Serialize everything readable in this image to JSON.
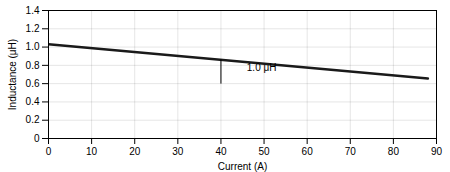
{
  "chart_data": {
    "type": "line",
    "xlabel": "Current (A)",
    "ylabel": "Inductance (μH)",
    "x": [
      0,
      88
    ],
    "values": [
      1.03,
      0.655
    ],
    "color": "#1a1a1a",
    "xlim": [
      0,
      90
    ],
    "ylim": [
      0,
      1.4
    ],
    "xticks": [
      0,
      10,
      20,
      30,
      40,
      50,
      60,
      70,
      80,
      90
    ],
    "yticks": [
      0,
      0.2,
      0.4,
      0.6,
      0.8,
      {
        "value": 1,
        "label": "1.0"
      },
      1.2,
      1.4
    ],
    "grid": true,
    "annotation_line": {
      "x": 40,
      "y_bottom": 0.595,
      "y_top": 0.86
    },
    "annotations": [
      {
        "text": "1.0 μH",
        "x": 46,
        "y": 0.775
      }
    ]
  }
}
